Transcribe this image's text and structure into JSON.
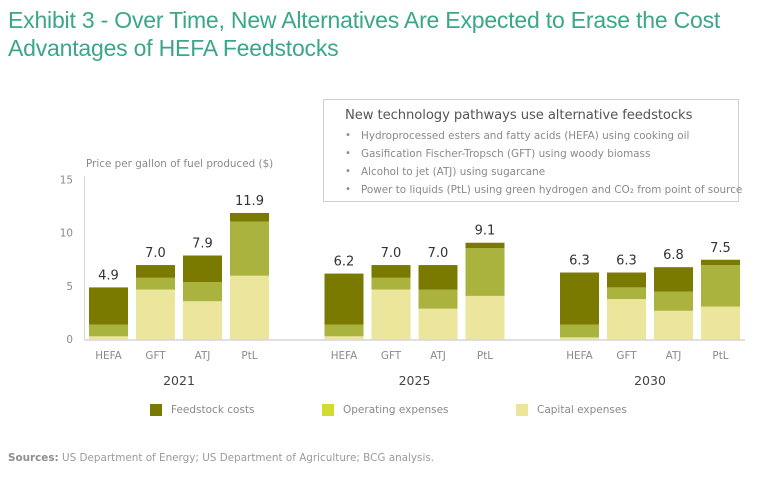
{
  "title": "Exhibit 3 - Over Time, New Alternatives Are Expected to Erase the Cost Advantages of HEFA Feedstocks",
  "infobox": {
    "heading": "New technology pathways use alternative feedstocks",
    "items": [
      "Hydroprocessed esters and fatty acids (HEFA) using cooking oil",
      "Gasification Fischer-Tropsch (GFT) using woody biomass",
      "Alcohol to jet (ATJ) using sugarcane",
      "Power to liquids (PtL) using green hydrogen and CO₂ from point of source"
    ],
    "bullet": "•"
  },
  "legend": [
    {
      "name": "Feedstock costs",
      "color": "#7a7a00"
    },
    {
      "name": "Operating expenses",
      "color": "#d3da32"
    },
    {
      "name": "Capital expenses",
      "color": "#ece69c"
    }
  ],
  "sources": {
    "label": "Sources:",
    "text": "US Department of Energy; US Department of Agriculture; BCG analysis."
  },
  "chart_data": {
    "type": "bar",
    "stacked": true,
    "title": "Exhibit 3 - Over Time, New Alternatives Are Expected to Erase the Cost Advantages of HEFA Feedstocks",
    "xlabel": "",
    "ylabel": "Price per gallon of fuel produced ($)",
    "ylim": [
      0,
      15
    ],
    "yticks": [
      0,
      5,
      10,
      15
    ],
    "grid": false,
    "legend_position": "bottom",
    "groups": [
      "2021",
      "2025",
      "2030"
    ],
    "categories": [
      "HEFA",
      "GFT",
      "ATJ",
      "PtL"
    ],
    "series_colors": {
      "Capital expenses": "#ece69c",
      "Operating expenses": "#a9b33e",
      "Feedstock costs": "#7a7a00"
    },
    "series": [
      {
        "name": "Capital expenses",
        "values": {
          "2021": [
            0.3,
            4.7,
            3.6,
            6.0
          ],
          "2025": [
            0.3,
            4.7,
            2.9,
            4.1
          ],
          "2030": [
            0.2,
            3.8,
            2.7,
            3.1
          ]
        }
      },
      {
        "name": "Operating expenses",
        "values": {
          "2021": [
            1.1,
            1.1,
            1.8,
            5.1
          ],
          "2025": [
            1.1,
            1.1,
            1.8,
            4.5
          ],
          "2030": [
            1.2,
            1.1,
            1.8,
            3.9
          ]
        }
      },
      {
        "name": "Feedstock costs",
        "values": {
          "2021": [
            3.5,
            1.2,
            2.5,
            0.8
          ],
          "2025": [
            4.8,
            1.2,
            2.3,
            0.5
          ],
          "2030": [
            4.9,
            1.4,
            2.3,
            0.5
          ]
        }
      }
    ],
    "totals": {
      "2021": [
        "4.9",
        "7.0",
        "7.9",
        "11.9"
      ],
      "2025": [
        "6.2",
        "7.0",
        "7.0",
        "9.1"
      ],
      "2030": [
        "6.3",
        "6.3",
        "6.8",
        "7.5"
      ]
    }
  }
}
